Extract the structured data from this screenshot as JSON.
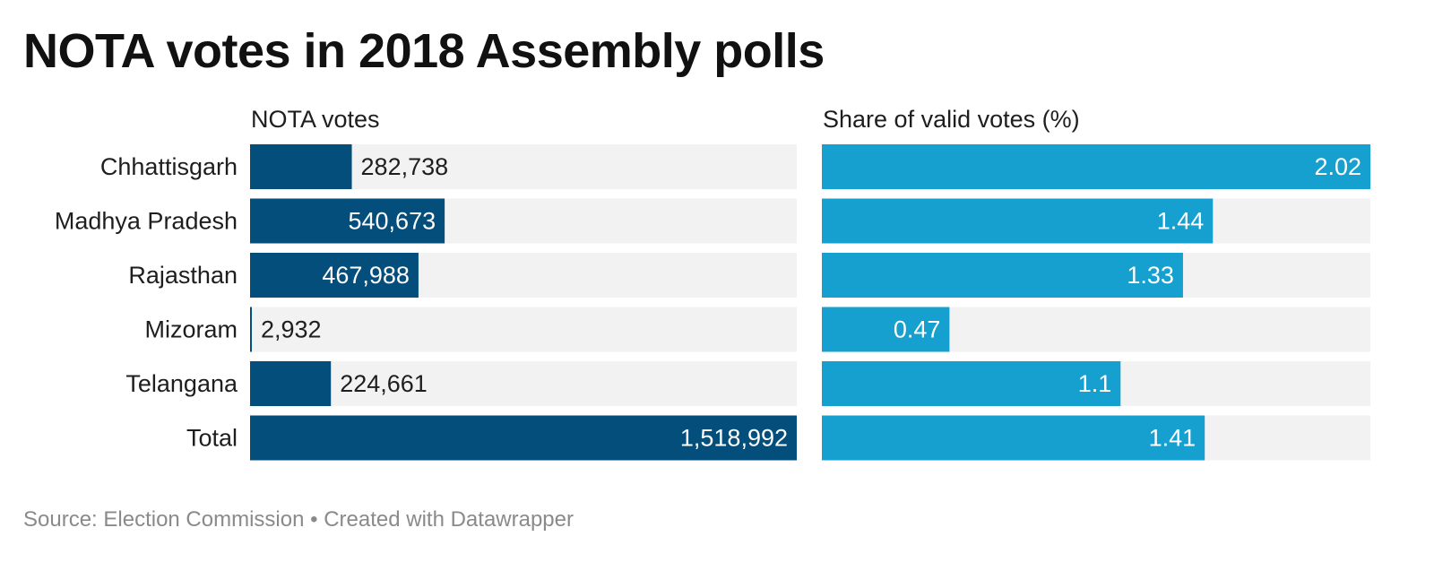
{
  "title": "NOTA votes in 2018 Assembly polls",
  "source": "Source: Election Commission • Created with Datawrapper",
  "colors": {
    "votes_bar": "#034e7b",
    "share_bar": "#15a0cf",
    "track": "#f2f2f2",
    "label_dark": "#1e1e1e",
    "label_light": "#ffffff"
  },
  "chart_data": [
    {
      "type": "bar",
      "orientation": "horizontal",
      "title": "NOTA votes",
      "categories": [
        "Chhattisgarh",
        "Madhya Pradesh",
        "Rajasthan",
        "Mizoram",
        "Telangana",
        "Total"
      ],
      "values": [
        282738,
        540673,
        467988,
        2932,
        224661,
        1518992
      ],
      "labels": [
        "282,738",
        "540,673",
        "467,988",
        "2,932",
        "224,661",
        "1,518,992"
      ],
      "xlim": [
        0,
        1518992
      ]
    },
    {
      "type": "bar",
      "orientation": "horizontal",
      "title": "Share of valid votes (%)",
      "categories": [
        "Chhattisgarh",
        "Madhya Pradesh",
        "Rajasthan",
        "Mizoram",
        "Telangana",
        "Total"
      ],
      "values": [
        2.02,
        1.44,
        1.33,
        0.47,
        1.1,
        1.41
      ],
      "labels": [
        "2.02",
        "1.44",
        "1.33",
        "0.47",
        "1.1",
        "1.41"
      ],
      "xlim": [
        0,
        2.02
      ]
    }
  ]
}
